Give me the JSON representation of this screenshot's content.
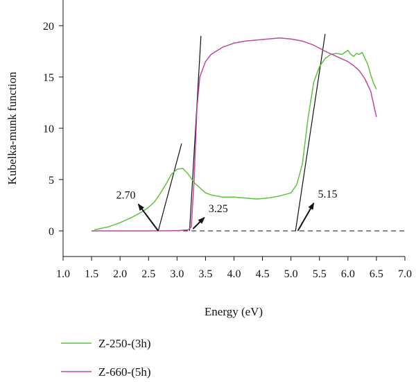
{
  "chart_data": {
    "type": "line",
    "title": "",
    "xlabel": "Energy (eV)",
    "ylabel": "Kubelka-munk function",
    "xlim": [
      1.0,
      7.0
    ],
    "ylim": [
      -2.5,
      22.5
    ],
    "xticks": [
      "1.0",
      "1.5",
      "2.0",
      "2.5",
      "3.0",
      "3.5",
      "4.0",
      "4.5",
      "5.0",
      "5.5",
      "6.0",
      "6.5",
      "7.0"
    ],
    "yticks": [
      "0",
      "5",
      "10",
      "15",
      "20"
    ],
    "grid": false,
    "legend_position": "bottom-left",
    "series": [
      {
        "name": "Z-250-(3h)",
        "color": "#5cc43a",
        "x": [
          1.55,
          1.8,
          2.0,
          2.2,
          2.4,
          2.5,
          2.6,
          2.7,
          2.8,
          2.9,
          3.0,
          3.1,
          3.2,
          3.3,
          3.4,
          3.5,
          3.6,
          3.8,
          4.0,
          4.2,
          4.4,
          4.6,
          4.8,
          5.0,
          5.1,
          5.2,
          5.3,
          5.4,
          5.5,
          5.6,
          5.7,
          5.8,
          5.9,
          6.0,
          6.05,
          6.1,
          6.15,
          6.2,
          6.25,
          6.3,
          6.35,
          6.4,
          6.45,
          6.5
        ],
        "y": [
          0.1,
          0.4,
          0.8,
          1.3,
          1.9,
          2.3,
          2.8,
          3.6,
          4.5,
          5.5,
          6.0,
          6.1,
          5.5,
          4.7,
          4.2,
          3.7,
          3.5,
          3.3,
          3.3,
          3.2,
          3.1,
          3.2,
          3.4,
          3.7,
          4.5,
          6.5,
          11.0,
          14.5,
          16.0,
          16.8,
          17.2,
          17.3,
          17.2,
          17.6,
          17.2,
          17.0,
          17.3,
          17.2,
          17.4,
          16.8,
          16.2,
          15.2,
          14.4,
          13.8
        ]
      },
      {
        "name": "Z-660-(5h)",
        "color": "#c0479e",
        "x": [
          1.55,
          2.0,
          2.5,
          3.0,
          3.2,
          3.25,
          3.3,
          3.35,
          3.4,
          3.5,
          3.6,
          3.8,
          4.0,
          4.2,
          4.4,
          4.6,
          4.8,
          5.0,
          5.2,
          5.4,
          5.6,
          5.8,
          6.0,
          6.1,
          6.2,
          6.3,
          6.4,
          6.5
        ],
        "y": [
          0.0,
          0.0,
          0.0,
          0.02,
          0.1,
          0.4,
          5.0,
          12.0,
          15.0,
          16.5,
          17.2,
          17.9,
          18.3,
          18.5,
          18.6,
          18.7,
          18.8,
          18.7,
          18.5,
          18.1,
          17.5,
          17.0,
          16.5,
          16.1,
          15.6,
          14.8,
          13.6,
          11.1
        ]
      }
    ],
    "tangent_lines": [
      {
        "x1": 2.67,
        "y1": 0,
        "x2": 3.08,
        "y2": 8.5
      },
      {
        "x1": 3.22,
        "y1": 0,
        "x2": 3.42,
        "y2": 19.0
      },
      {
        "x1": 5.08,
        "y1": 0,
        "x2": 5.6,
        "y2": 19.2
      }
    ],
    "baseline": {
      "y": 0,
      "style": "dashed"
    },
    "annotations": [
      {
        "label": "2.70",
        "from_x": 2.67,
        "from_y": 0.0,
        "to_x": 2.32,
        "to_y": 2.6
      },
      {
        "label": "3.25",
        "from_x": 3.28,
        "from_y": 0.2,
        "to_x": 3.48,
        "to_y": 1.3
      },
      {
        "label": "5.15",
        "from_x": 5.12,
        "from_y": 0.0,
        "to_x": 5.4,
        "to_y": 2.7
      }
    ]
  }
}
